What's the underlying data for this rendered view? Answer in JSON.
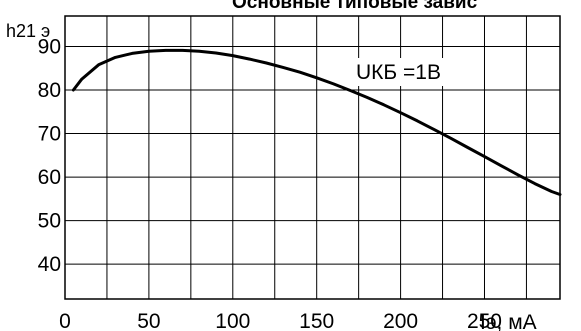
{
  "chart_data": {
    "type": "line",
    "title": "Основные типовые завис",
    "ylabel": "h21 э",
    "xlabel": "Iэ, мА",
    "annotation": "UКБ =1В",
    "x_ticks": [
      "0",
      "50",
      "100",
      "150",
      "200",
      "250"
    ],
    "y_ticks": [
      "40",
      "50",
      "60",
      "70",
      "80",
      "90"
    ],
    "xlim": [
      0,
      295
    ],
    "ylim": [
      32,
      97
    ],
    "grid": true,
    "series": [
      {
        "x": [
          5,
          10,
          20,
          30,
          40,
          50,
          60,
          70,
          80,
          90,
          100,
          110,
          120,
          130,
          140,
          150,
          160,
          170,
          180,
          190,
          200,
          210,
          220,
          230,
          240,
          250,
          260,
          270,
          280,
          290,
          295
        ],
        "y": [
          80,
          82.5,
          85.8,
          87.5,
          88.4,
          88.9,
          89.1,
          89.1,
          88.9,
          88.5,
          87.9,
          87.1,
          86.2,
          85.2,
          84.1,
          82.8,
          81.4,
          79.9,
          78.3,
          76.6,
          74.8,
          72.9,
          70.9,
          68.9,
          66.8,
          64.7,
          62.6,
          60.5,
          58.5,
          56.7,
          56
        ]
      }
    ],
    "colors": {
      "line": "#000000",
      "grid": "#000000",
      "background": "#ffffff"
    }
  }
}
